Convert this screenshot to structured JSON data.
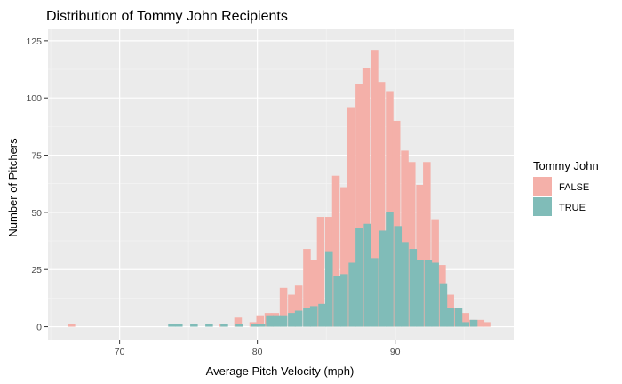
{
  "chart_data": {
    "type": "bar",
    "subtype": "overlapping histogram",
    "title": "Distribution of Tommy John Recipients",
    "xlabel": "Average Pitch Velocity (mph)",
    "ylabel": "Number of Pitchers",
    "xlim": [
      64.8,
      98.6
    ],
    "ylim": [
      -6,
      130
    ],
    "x_ticks": [
      70,
      80,
      90
    ],
    "y_ticks": [
      0,
      25,
      50,
      75,
      100,
      125
    ],
    "bin_width": 0.55,
    "grid": true,
    "legend": {
      "title": "Tommy John",
      "position": "right",
      "entries": [
        {
          "label": "FALSE",
          "color": "#f4b0a9"
        },
        {
          "label": "TRUE",
          "color": "#80bcb8"
        }
      ]
    },
    "series": [
      {
        "name": "FALSE",
        "color": "#f4b0a9",
        "x": [
          66.5,
          77.5,
          78.6,
          79.7,
          80.2,
          80.8,
          81.3,
          81.9,
          82.5,
          83.0,
          83.6,
          84.1,
          84.6,
          85.2,
          85.7,
          86.3,
          86.8,
          87.4,
          87.9,
          88.5,
          89.0,
          89.6,
          90.1,
          90.7,
          91.2,
          91.8,
          92.3,
          92.9,
          93.4,
          94.0,
          94.5,
          95.1,
          95.6,
          96.2,
          96.7
        ],
        "values": [
          1,
          1,
          4,
          2,
          5,
          6,
          6,
          17,
          14,
          18,
          34,
          29,
          48,
          48,
          66,
          61,
          96,
          106,
          113,
          121,
          107,
          103,
          90,
          77,
          72,
          62,
          72,
          47,
          27,
          14,
          8,
          6,
          3,
          3,
          2
        ]
      },
      {
        "name": "TRUE",
        "color": "#80bcb8",
        "x": [
          73.8,
          74.3,
          75.4,
          76.5,
          77.6,
          78.7,
          79.8,
          80.3,
          80.9,
          81.4,
          81.9,
          82.5,
          83.0,
          83.6,
          84.1,
          84.7,
          85.2,
          85.8,
          86.3,
          86.9,
          87.4,
          88.0,
          88.5,
          89.1,
          89.6,
          90.2,
          90.7,
          91.3,
          91.8,
          92.4,
          92.9,
          93.5,
          94.0,
          94.6,
          95.1,
          95.7
        ],
        "values": [
          1,
          1,
          1,
          1,
          1,
          1,
          1,
          1,
          5,
          5,
          5,
          6,
          7,
          8,
          9,
          10,
          33,
          22,
          23,
          28,
          43,
          45,
          30,
          42,
          50,
          44,
          37,
          34,
          29,
          29,
          28,
          19,
          8,
          8,
          2,
          3
        ]
      }
    ]
  }
}
